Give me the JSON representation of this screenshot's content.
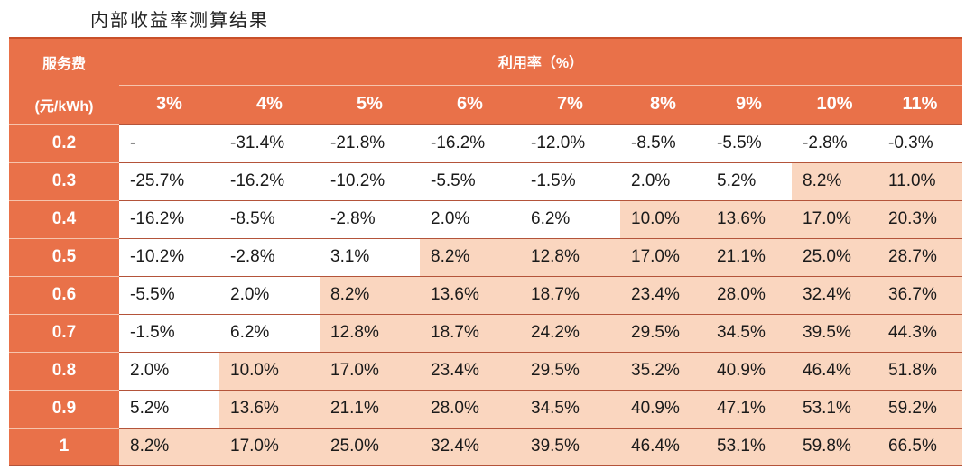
{
  "title": "内部收益率测算结果",
  "header": {
    "fee_label_1": "服务费",
    "fee_label_2": "(元/kWh)",
    "util_label": "利用率（%）",
    "util_columns": [
      "3%",
      "4%",
      "5%",
      "6%",
      "7%",
      "8%",
      "9%",
      "10%",
      "11%"
    ]
  },
  "colors": {
    "header_bg": "#E97149",
    "highlight_bg": "#FAD6BF",
    "plain_bg": "#FFFFFF"
  },
  "rows": [
    {
      "fee": "0.2",
      "values": [
        "-",
        "-31.4%",
        "-21.8%",
        "-16.2%",
        "-12.0%",
        "-8.5%",
        "-5.5%",
        "-2.8%",
        "-0.3%"
      ],
      "highlight": [
        false,
        false,
        false,
        false,
        false,
        false,
        false,
        false,
        false
      ]
    },
    {
      "fee": "0.3",
      "values": [
        "-25.7%",
        "-16.2%",
        "-10.2%",
        "-5.5%",
        "-1.5%",
        "2.0%",
        "5.2%",
        "8.2%",
        "11.0%"
      ],
      "highlight": [
        false,
        false,
        false,
        false,
        false,
        false,
        false,
        true,
        true
      ]
    },
    {
      "fee": "0.4",
      "values": [
        "-16.2%",
        "-8.5%",
        "-2.8%",
        "2.0%",
        "6.2%",
        "10.0%",
        "13.6%",
        "17.0%",
        "20.3%"
      ],
      "highlight": [
        false,
        false,
        false,
        false,
        false,
        true,
        true,
        true,
        true
      ]
    },
    {
      "fee": "0.5",
      "values": [
        "-10.2%",
        "-2.8%",
        "3.1%",
        "8.2%",
        "12.8%",
        "17.0%",
        "21.1%",
        "25.0%",
        "28.7%"
      ],
      "highlight": [
        false,
        false,
        false,
        true,
        true,
        true,
        true,
        true,
        true
      ]
    },
    {
      "fee": "0.6",
      "values": [
        "-5.5%",
        "2.0%",
        "8.2%",
        "13.6%",
        "18.7%",
        "23.4%",
        "28.0%",
        "32.4%",
        "36.7%"
      ],
      "highlight": [
        false,
        false,
        true,
        true,
        true,
        true,
        true,
        true,
        true
      ]
    },
    {
      "fee": "0.7",
      "values": [
        "-1.5%",
        "6.2%",
        "12.8%",
        "18.7%",
        "24.2%",
        "29.5%",
        "34.5%",
        "39.5%",
        "44.3%"
      ],
      "highlight": [
        false,
        false,
        true,
        true,
        true,
        true,
        true,
        true,
        true
      ]
    },
    {
      "fee": "0.8",
      "values": [
        "2.0%",
        "10.0%",
        "17.0%",
        "23.4%",
        "29.5%",
        "35.2%",
        "40.9%",
        "46.4%",
        "51.8%"
      ],
      "highlight": [
        false,
        true,
        true,
        true,
        true,
        true,
        true,
        true,
        true
      ]
    },
    {
      "fee": "0.9",
      "values": [
        "5.2%",
        "13.6%",
        "21.1%",
        "28.0%",
        "34.5%",
        "40.9%",
        "47.1%",
        "53.1%",
        "59.2%"
      ],
      "highlight": [
        false,
        true,
        true,
        true,
        true,
        true,
        true,
        true,
        true
      ]
    },
    {
      "fee": "1",
      "values": [
        "8.2%",
        "17.0%",
        "25.0%",
        "32.4%",
        "39.5%",
        "46.4%",
        "53.1%",
        "59.8%",
        "66.5%"
      ],
      "highlight": [
        true,
        true,
        true,
        true,
        true,
        true,
        true,
        true,
        true
      ]
    }
  ]
}
